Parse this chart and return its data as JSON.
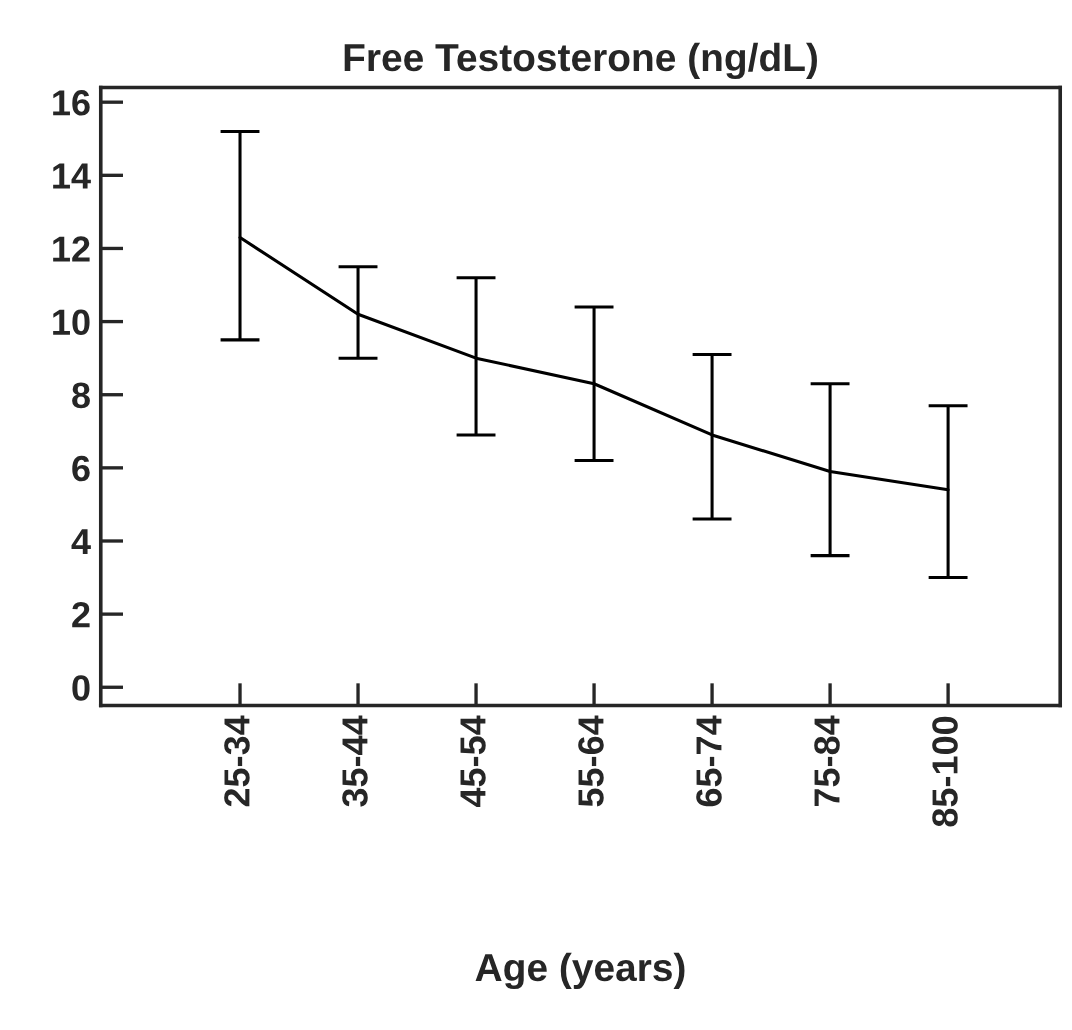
{
  "chart_data": {
    "type": "line",
    "title": "Free Testosterone (ng/dL)",
    "xlabel": "Age (years)",
    "categories": [
      "25-34",
      "35-44",
      "45-54",
      "55-64",
      "65-74",
      "75-84",
      "85-100"
    ],
    "series": [
      {
        "color": "#000000",
        "values": [
          12.3,
          10.2,
          9.0,
          8.3,
          6.9,
          5.9,
          5.4
        ],
        "errors": [
          [
            9.5,
            15.2
          ],
          [
            9.0,
            11.5
          ],
          [
            6.9,
            11.2
          ],
          [
            6.2,
            10.4
          ],
          [
            4.6,
            9.1
          ],
          [
            3.6,
            8.3
          ],
          [
            3.0,
            7.7
          ]
        ]
      }
    ],
    "ylim": [
      -0.5,
      16.4
    ],
    "yticks": [
      0,
      2,
      4,
      6,
      8,
      10,
      12,
      14,
      16
    ],
    "grid": false,
    "legend": false,
    "marker": "none",
    "line_style": "solid"
  }
}
